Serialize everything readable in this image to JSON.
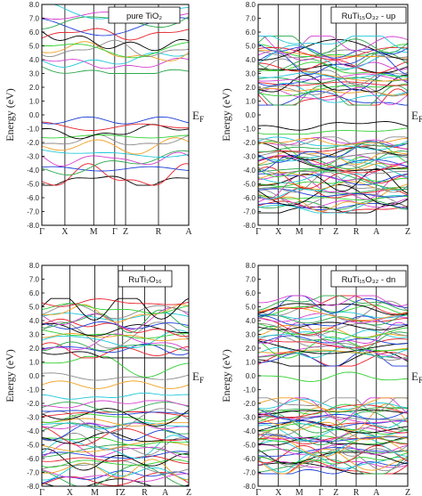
{
  "chart_data": [
    {
      "type": "line",
      "label": "pure TiO₂",
      "ylabel": "Energy (eV)",
      "fermi_label": "EF",
      "ylim": [
        -8.0,
        8.0
      ],
      "y_ticks": [
        "8.0",
        "7.0",
        "6.0",
        "5.0",
        "4.0",
        "3.0",
        "2.0",
        "1.0",
        "0.0",
        "-1.0",
        "-2.0",
        "-3.0",
        "-4.0",
        "-5.0",
        "-6.0",
        "-7.0",
        "-8.0"
      ],
      "k_labels": [
        "Γ",
        "X",
        "M",
        "Γ",
        "Z",
        "R",
        "A"
      ],
      "k_positions": [
        0,
        0.157,
        0.353,
        0.496,
        0.57,
        0.794,
        1.0
      ],
      "colors": [
        "#000000",
        "#e8202a",
        "#1d3fd8",
        "#2aa84a",
        "#d43fd0",
        "#20c8d8",
        "#f0a020",
        "#8a8a8a",
        "#30d030"
      ],
      "band_groups": [
        {
          "range": [
            -4.9,
            -0.1
          ],
          "count": 12
        },
        {
          "range": [
            3.2,
            7.8
          ],
          "count": 12
        }
      ]
    },
    {
      "type": "line",
      "label": "RuTi₁₅O₃₂ - up",
      "ylabel": "Energy (eV)",
      "fermi_label": "EF",
      "ylim": [
        -8.0,
        8.0
      ],
      "y_ticks": [
        "8.0",
        "7.0",
        "6.0",
        "5.0",
        "4.0",
        "3.0",
        "2.0",
        "1.0",
        "0.0",
        "-1.0",
        "-2.0",
        "-3.0",
        "-4.0",
        "-5.0",
        "-6.0",
        "-7.0",
        "-8.0"
      ],
      "k_labels": [
        "Γ",
        "X",
        "M",
        "Γ",
        "Z",
        "R",
        "A",
        "Z"
      ],
      "k_positions": [
        0,
        0.135,
        0.275,
        0.42,
        0.52,
        0.655,
        0.79,
        1.0
      ],
      "colors": [
        "#000000",
        "#e8202a",
        "#1d3fd8",
        "#2aa84a",
        "#d43fd0",
        "#20c8d8",
        "#f0a020",
        "#8a8a8a",
        "#30d030"
      ],
      "band_groups": [
        {
          "range": [
            -6.9,
            -1.8
          ],
          "count": 44
        },
        {
          "range": [
            -1.2,
            -0.5
          ],
          "count": 2
        },
        {
          "range": [
            0.9,
            5.5
          ],
          "count": 32
        }
      ]
    },
    {
      "type": "line",
      "label": "RuTi₇O₁₆",
      "ylabel": "Energy (eV)",
      "fermi_label": "EF",
      "ylim": [
        -8.0,
        8.0
      ],
      "y_ticks": [
        "8.0",
        "7.0",
        "6.0",
        "5.0",
        "4.0",
        "3.0",
        "2.0",
        "1.0",
        "0.0",
        "-1.0",
        "-2.0",
        "-3.0",
        "-4.0",
        "-5.0",
        "-6.0",
        "-7.0",
        "-8.0"
      ],
      "k_labels": [
        "Γ",
        "X",
        "M",
        "Γ",
        "Z",
        "R",
        "A",
        "Z"
      ],
      "k_positions": [
        0,
        0.19,
        0.36,
        0.52,
        0.55,
        0.7,
        0.84,
        1.0
      ],
      "colors": [
        "#000000",
        "#e8202a",
        "#1d3fd8",
        "#2aa84a",
        "#d43fd0",
        "#20c8d8",
        "#f0a020",
        "#8a8a8a",
        "#30d030"
      ],
      "band_groups": [
        {
          "range": [
            -7.9,
            -2.0
          ],
          "count": 32
        },
        {
          "range": [
            -1.5,
            1.2
          ],
          "count": 4
        },
        {
          "range": [
            1.5,
            5.4
          ],
          "count": 20
        }
      ]
    },
    {
      "type": "line",
      "label": "RuTi₁₅O₃₂ - dn",
      "ylabel": "Energy (eV)",
      "fermi_label": "EF",
      "ylim": [
        -8.0,
        8.0
      ],
      "y_ticks": [
        "8.0",
        "7.0",
        "6.0",
        "5.0",
        "4.0",
        "3.0",
        "2.0",
        "1.0",
        "0.0",
        "-1.0",
        "-2.0",
        "-3.0",
        "-4.0",
        "-5.0",
        "-6.0",
        "-7.0",
        "-8.0"
      ],
      "k_labels": [
        "Γ",
        "X",
        "M",
        "Γ",
        "Z",
        "R",
        "A",
        "Z"
      ],
      "k_positions": [
        0,
        0.135,
        0.275,
        0.42,
        0.52,
        0.655,
        0.79,
        1.0
      ],
      "colors": [
        "#000000",
        "#e8202a",
        "#1d3fd8",
        "#2aa84a",
        "#d43fd0",
        "#20c8d8",
        "#f0a020",
        "#8a8a8a",
        "#30d030"
      ],
      "band_groups": [
        {
          "range": [
            -6.9,
            -1.8
          ],
          "count": 44
        },
        {
          "range": [
            -0.3,
            0.1
          ],
          "count": 1
        },
        {
          "range": [
            0.9,
            5.6
          ],
          "count": 32
        }
      ]
    }
  ]
}
